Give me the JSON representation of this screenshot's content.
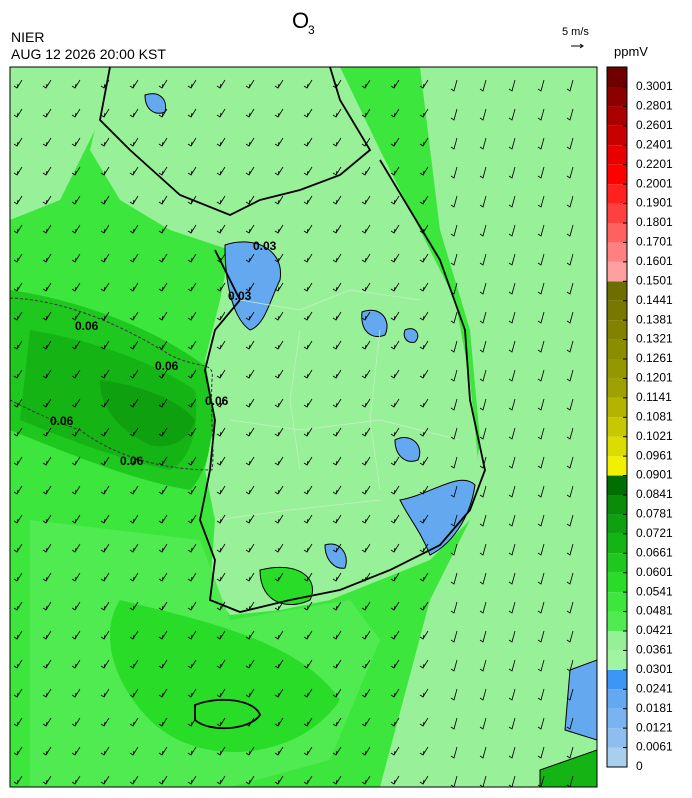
{
  "header": {
    "title": "O",
    "title_subscript": "3",
    "agency": "NIER",
    "timestamp": "AUG 12 2026 20:00 KST"
  },
  "wind_legend": {
    "label": "5 m/s"
  },
  "colorbar": {
    "unit": "ppmV",
    "ticks": [
      0,
      0.0061,
      0.0121,
      0.0181,
      0.0241,
      0.0301,
      0.0361,
      0.0421,
      0.0481,
      0.0541,
      0.0601,
      0.0661,
      0.0721,
      0.0781,
      0.0841,
      0.0901,
      0.0961,
      0.1021,
      0.1081,
      0.1141,
      0.1201,
      0.1261,
      0.1321,
      0.1381,
      0.1441,
      0.1501,
      0.1601,
      0.1701,
      0.1801,
      0.1901,
      0.2001,
      0.2201,
      0.2401,
      0.2601,
      0.2801,
      0.3001
    ],
    "colors": [
      "#a8cfee",
      "#8cbff0",
      "#78b4f0",
      "#64a8f0",
      "#3c96f5",
      "#a0f5a0",
      "#96f096",
      "#50eb50",
      "#3ce63c",
      "#28dc28",
      "#1ec81e",
      "#14b414",
      "#0fa00f",
      "#0a8c0a",
      "#006e00",
      "#f0f000",
      "#dcdc00",
      "#c8c800",
      "#b4b400",
      "#a0a000",
      "#969600",
      "#8c8c00",
      "#828200",
      "#787800",
      "#6e6e00",
      "#ffa0a0",
      "#ff8080",
      "#ff6060",
      "#ff4040",
      "#ff2020",
      "#ff0000",
      "#e60000",
      "#c80000",
      "#aa0000",
      "#8c0000",
      "#6e0000"
    ]
  },
  "map": {
    "contour_labels": [
      "0.03",
      "0.03",
      "0.06",
      "0.06",
      "0.06",
      "0.06",
      "0.06"
    ]
  }
}
